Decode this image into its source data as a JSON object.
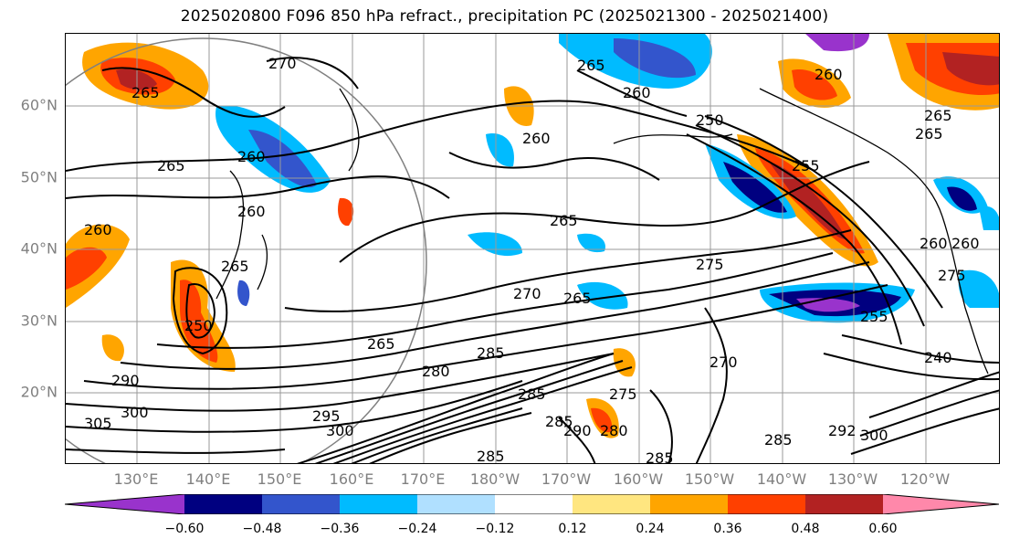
{
  "title": "2025020800 F096 850 hPa refract., precipitation PC (2025021300 - 2025021400)",
  "lat_labels": [
    "60°N",
    "50°N",
    "40°N",
    "30°N",
    "20°N"
  ],
  "lon_labels": [
    "130°E",
    "140°E",
    "150°E",
    "160°E",
    "170°E",
    "180°W",
    "170°W",
    "160°W",
    "150°W",
    "140°W",
    "130°W",
    "120°W"
  ],
  "colorbar": {
    "ticks": [
      "−0.60",
      "−0.48",
      "−0.36",
      "−0.24",
      "−0.12",
      "0.12",
      "0.24",
      "0.36",
      "0.48",
      "0.60"
    ],
    "colors": [
      "#9933cc",
      "#000080",
      "#3355cc",
      "#00bbff",
      "#b0e0ff",
      "#ffffff",
      "#ffe680",
      "#ffa500",
      "#ff4000",
      "#b22222",
      "#ff88aa"
    ]
  },
  "contour_labels": [
    "270",
    "265",
    "260",
    "265",
    "260",
    "260",
    "265",
    "260",
    "250",
    "255",
    "265",
    "265",
    "260",
    "265",
    "260",
    "260",
    "250",
    "265",
    "275",
    "270",
    "265",
    "270",
    "255",
    "275",
    "265",
    "280",
    "285",
    "290",
    "295",
    "300",
    "305",
    "300",
    "285",
    "285",
    "290",
    "280",
    "275",
    "285",
    "285",
    "285",
    "292",
    "300",
    "240",
    "260"
  ]
}
